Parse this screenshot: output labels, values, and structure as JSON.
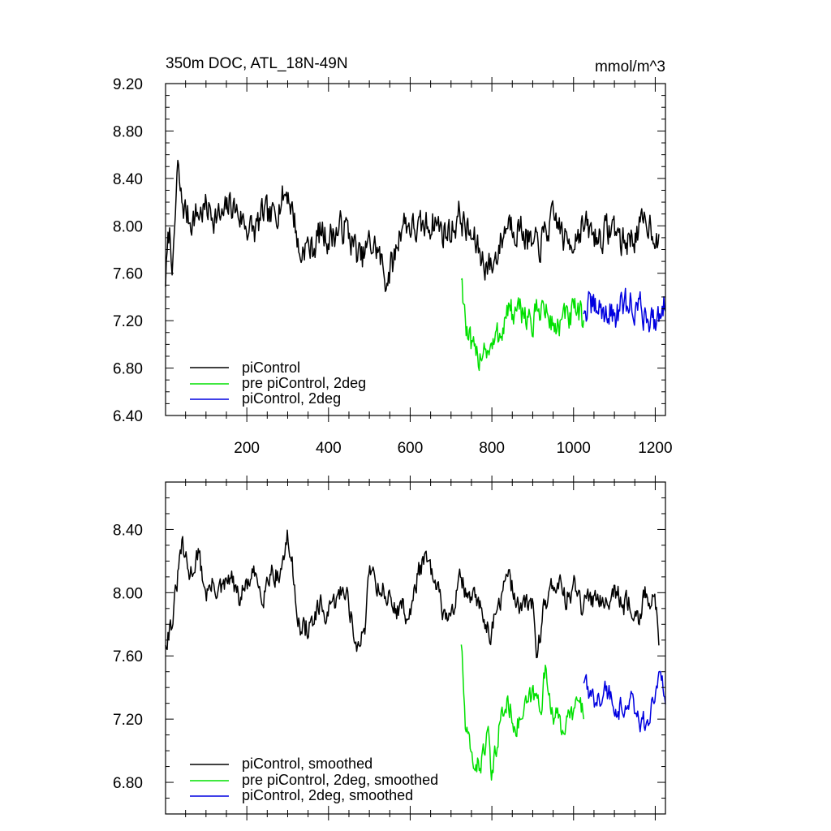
{
  "chart_data": [
    {
      "type": "line",
      "title": "350m DOC, ATL_18N-49N",
      "units": "mmol/m^3",
      "xlim": [
        1,
        1225
      ],
      "ylim": [
        6.4,
        9.2
      ],
      "xticks": [
        200,
        400,
        600,
        800,
        1000,
        1200
      ],
      "xtick_labels": [
        "200",
        "400",
        "600",
        "800",
        "1000",
        "1200"
      ],
      "yticks": [
        6.4,
        6.8,
        7.2,
        7.6,
        8.0,
        8.4,
        8.8,
        9.2
      ],
      "ytick_labels": [
        "6.40",
        "6.80",
        "7.20",
        "7.60",
        "8.00",
        "8.40",
        "8.80",
        "9.20"
      ],
      "legend_position": "bottom-left",
      "series": [
        {
          "name": "piControl",
          "color": "#000000",
          "x_start": 1,
          "x_end": 1210,
          "points": [
            [
              1,
              7.55
            ],
            [
              10,
              7.95
            ],
            [
              20,
              7.65
            ],
            [
              30,
              8.5
            ],
            [
              40,
              8.2
            ],
            [
              60,
              8.05
            ],
            [
              80,
              8.1
            ],
            [
              100,
              8.15
            ],
            [
              120,
              8.1
            ],
            [
              140,
              8.05
            ],
            [
              160,
              8.2
            ],
            [
              180,
              8.1
            ],
            [
              200,
              8.0
            ],
            [
              220,
              7.95
            ],
            [
              240,
              8.1
            ],
            [
              260,
              8.05
            ],
            [
              280,
              8.2
            ],
            [
              300,
              8.3
            ],
            [
              320,
              8.0
            ],
            [
              330,
              7.7
            ],
            [
              340,
              7.85
            ],
            [
              360,
              7.8
            ],
            [
              380,
              7.95
            ],
            [
              400,
              7.9
            ],
            [
              420,
              7.95
            ],
            [
              440,
              8.0
            ],
            [
              460,
              7.85
            ],
            [
              480,
              7.7
            ],
            [
              500,
              7.85
            ],
            [
              520,
              7.8
            ],
            [
              540,
              7.55
            ],
            [
              560,
              7.7
            ],
            [
              580,
              8.05
            ],
            [
              600,
              8.0
            ],
            [
              620,
              7.95
            ],
            [
              640,
              8.0
            ],
            [
              660,
              8.05
            ],
            [
              680,
              7.95
            ],
            [
              700,
              7.95
            ],
            [
              720,
              8.1
            ],
            [
              740,
              7.95
            ],
            [
              760,
              7.85
            ],
            [
              780,
              7.7
            ],
            [
              800,
              7.65
            ],
            [
              820,
              7.85
            ],
            [
              840,
              8.05
            ],
            [
              860,
              8.0
            ],
            [
              880,
              7.95
            ],
            [
              900,
              7.8
            ],
            [
              920,
              7.85
            ],
            [
              940,
              8.0
            ],
            [
              960,
              8.05
            ],
            [
              980,
              7.85
            ],
            [
              1000,
              7.9
            ],
            [
              1020,
              8.0
            ],
            [
              1040,
              7.95
            ],
            [
              1060,
              7.9
            ],
            [
              1080,
              7.95
            ],
            [
              1100,
              8.0
            ],
            [
              1120,
              7.85
            ],
            [
              1140,
              7.9
            ],
            [
              1160,
              7.95
            ],
            [
              1180,
              8.05
            ],
            [
              1200,
              7.95
            ],
            [
              1210,
              7.8
            ]
          ],
          "noise_amplitude": 0.22
        },
        {
          "name": "pre piControl, 2deg",
          "color": "#00e000",
          "x_start": 725,
          "x_end": 1025,
          "points": [
            [
              725,
              7.6
            ],
            [
              740,
              7.05
            ],
            [
              760,
              6.85
            ],
            [
              780,
              7.0
            ],
            [
              800,
              6.95
            ],
            [
              820,
              7.1
            ],
            [
              840,
              7.3
            ],
            [
              860,
              7.2
            ],
            [
              880,
              7.3
            ],
            [
              900,
              7.15
            ],
            [
              920,
              7.35
            ],
            [
              940,
              7.2
            ],
            [
              960,
              7.15
            ],
            [
              980,
              7.2
            ],
            [
              1000,
              7.25
            ],
            [
              1025,
              7.2
            ]
          ],
          "noise_amplitude": 0.22
        },
        {
          "name": "piControl, 2deg",
          "color": "#0000e0",
          "x_start": 1025,
          "x_end": 1225,
          "points": [
            [
              1025,
              7.3
            ],
            [
              1060,
              7.3
            ],
            [
              1100,
              7.25
            ],
            [
              1140,
              7.35
            ],
            [
              1180,
              7.25
            ],
            [
              1200,
              7.2
            ],
            [
              1225,
              7.4
            ]
          ],
          "noise_amplitude": 0.22
        }
      ]
    },
    {
      "type": "line",
      "title": "",
      "xlim": [
        1,
        1225
      ],
      "ylim": [
        6.6,
        8.7
      ],
      "xticks": [
        200,
        400,
        600,
        800,
        1000,
        1200
      ],
      "xtick_labels": [],
      "yticks": [
        6.8,
        7.2,
        7.6,
        8.0,
        8.4
      ],
      "ytick_labels": [
        "6.80",
        "7.20",
        "7.60",
        "8.00",
        "8.40"
      ],
      "legend_position": "bottom-left",
      "series": [
        {
          "name": "piControl, smoothed",
          "color": "#000000",
          "x_start": 1,
          "x_end": 1210,
          "points": [
            [
              1,
              7.7
            ],
            [
              20,
              7.85
            ],
            [
              40,
              8.3
            ],
            [
              60,
              8.1
            ],
            [
              80,
              8.25
            ],
            [
              100,
              8.0
            ],
            [
              120,
              8.05
            ],
            [
              140,
              8.0
            ],
            [
              160,
              8.1
            ],
            [
              180,
              7.95
            ],
            [
              200,
              8.05
            ],
            [
              220,
              8.1
            ],
            [
              240,
              8.0
            ],
            [
              260,
              8.15
            ],
            [
              280,
              8.1
            ],
            [
              300,
              8.35
            ],
            [
              320,
              8.0
            ],
            [
              330,
              7.75
            ],
            [
              360,
              7.8
            ],
            [
              380,
              7.9
            ],
            [
              400,
              7.85
            ],
            [
              420,
              7.95
            ],
            [
              440,
              8.05
            ],
            [
              460,
              7.8
            ],
            [
              470,
              7.6
            ],
            [
              490,
              7.8
            ],
            [
              500,
              8.2
            ],
            [
              520,
              8.05
            ],
            [
              540,
              8.0
            ],
            [
              560,
              7.9
            ],
            [
              580,
              7.9
            ],
            [
              600,
              7.85
            ],
            [
              620,
              8.15
            ],
            [
              640,
              8.2
            ],
            [
              660,
              8.05
            ],
            [
              680,
              7.9
            ],
            [
              700,
              7.8
            ],
            [
              720,
              8.15
            ],
            [
              740,
              7.95
            ],
            [
              760,
              7.95
            ],
            [
              780,
              7.85
            ],
            [
              800,
              7.75
            ],
            [
              820,
              7.95
            ],
            [
              840,
              8.1
            ],
            [
              860,
              7.95
            ],
            [
              880,
              7.9
            ],
            [
              900,
              7.95
            ],
            [
              910,
              7.6
            ],
            [
              930,
              7.95
            ],
            [
              960,
              8.1
            ],
            [
              980,
              7.95
            ],
            [
              1000,
              8.05
            ],
            [
              1020,
              7.9
            ],
            [
              1040,
              7.95
            ],
            [
              1060,
              8.0
            ],
            [
              1080,
              7.95
            ],
            [
              1100,
              8.05
            ],
            [
              1120,
              7.9
            ],
            [
              1140,
              7.95
            ],
            [
              1160,
              7.85
            ],
            [
              1180,
              8.0
            ],
            [
              1200,
              7.9
            ],
            [
              1210,
              7.7
            ]
          ],
          "noise_amplitude": 0.12
        },
        {
          "name": "pre piControl, 2deg, smoothed",
          "color": "#00e000",
          "x_start": 725,
          "x_end": 1025,
          "points": [
            [
              725,
              7.7
            ],
            [
              735,
              7.15
            ],
            [
              750,
              6.95
            ],
            [
              770,
              6.9
            ],
            [
              790,
              7.1
            ],
            [
              800,
              6.8
            ],
            [
              820,
              7.2
            ],
            [
              840,
              7.3
            ],
            [
              860,
              7.15
            ],
            [
              880,
              7.25
            ],
            [
              900,
              7.35
            ],
            [
              920,
              7.3
            ],
            [
              930,
              7.5
            ],
            [
              950,
              7.25
            ],
            [
              970,
              7.15
            ],
            [
              990,
              7.2
            ],
            [
              1010,
              7.3
            ],
            [
              1025,
              7.25
            ]
          ],
          "noise_amplitude": 0.12
        },
        {
          "name": "piControl, 2deg, smoothed",
          "color": "#0000e0",
          "x_start": 1025,
          "x_end": 1225,
          "points": [
            [
              1025,
              7.45
            ],
            [
              1040,
              7.3
            ],
            [
              1060,
              7.35
            ],
            [
              1080,
              7.4
            ],
            [
              1100,
              7.3
            ],
            [
              1120,
              7.25
            ],
            [
              1140,
              7.35
            ],
            [
              1160,
              7.2
            ],
            [
              1180,
              7.15
            ],
            [
              1200,
              7.35
            ],
            [
              1215,
              7.5
            ],
            [
              1225,
              7.35
            ]
          ],
          "noise_amplitude": 0.12
        }
      ]
    }
  ]
}
